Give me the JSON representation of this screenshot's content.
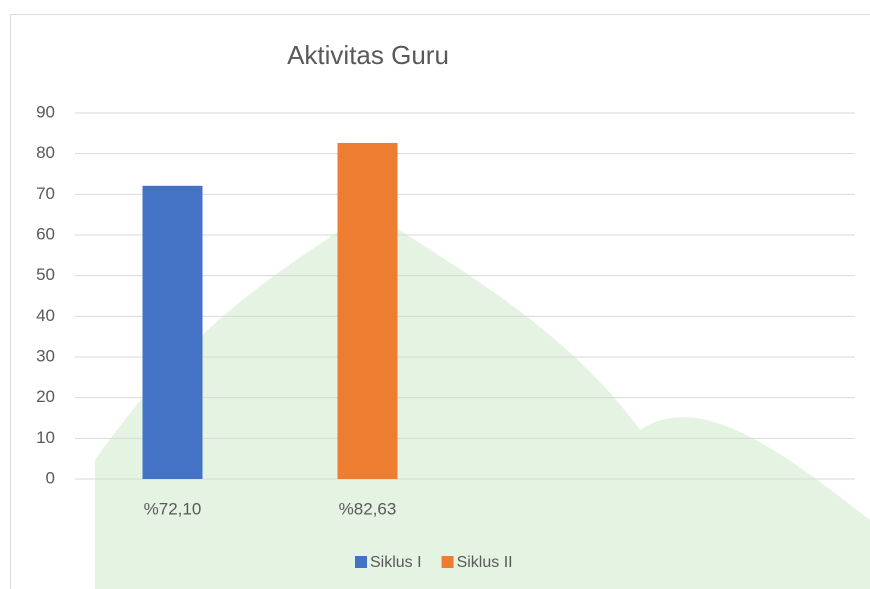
{
  "chart_data": {
    "type": "bar",
    "title": "Aktivitas Guru",
    "categories": [
      "%72,10",
      "%82,63",
      null,
      null
    ],
    "series": [
      {
        "name": "Siklus I",
        "color": "#4472c4",
        "values": [
          72.1,
          null,
          null,
          null
        ]
      },
      {
        "name": "Siklus II",
        "color": "#ed7d31",
        "values": [
          null,
          82.63,
          null,
          null
        ]
      }
    ],
    "ylim": [
      0,
      90
    ],
    "yticks": [
      0,
      10,
      20,
      30,
      40,
      50,
      60,
      70,
      80,
      90
    ],
    "grid": true,
    "legend": "bottom"
  }
}
